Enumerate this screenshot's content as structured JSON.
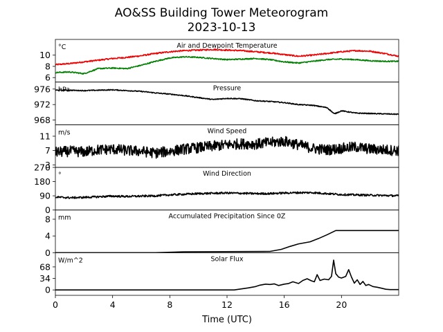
{
  "title": "AO&SS Building Tower Meteorogram",
  "subtitle": "2023-10-13",
  "xlabel": "Time (UTC)",
  "colors": {
    "temperature": "#ee0000",
    "dewpoint": "#008000",
    "line": "#000000"
  },
  "chart_data": {
    "type": "line",
    "x_axis": {
      "label": "Time (UTC)",
      "range": [
        0,
        24
      ],
      "ticks": [
        0,
        4,
        8,
        12,
        16,
        20
      ]
    },
    "panels": [
      {
        "id": "temp",
        "title": "Air and Dewpoint Temperature",
        "unit": "°C",
        "ylim": [
          5.2,
          12.8
        ],
        "yticks": [
          6,
          8,
          10
        ],
        "series": [
          {
            "color": "#ee0000",
            "noise": 0.12,
            "x": [
              0,
              1,
              2,
              3,
              4,
              5,
              6,
              7,
              8,
              9,
              10,
              11,
              12,
              13,
              14,
              15,
              16,
              17,
              18,
              19,
              20,
              21,
              22,
              23,
              24
            ],
            "values": [
              8.3,
              8.5,
              8.8,
              9.1,
              9.4,
              9.6,
              9.9,
              10.3,
              10.6,
              10.8,
              10.9,
              11.0,
              10.9,
              10.8,
              10.6,
              10.4,
              10.1,
              9.8,
              10.0,
              10.3,
              10.6,
              10.8,
              10.7,
              10.3,
              9.8
            ]
          },
          {
            "color": "#008000",
            "noise": 0.1,
            "x": [
              0,
              1,
              2,
              3,
              4,
              5,
              6,
              7,
              8,
              9,
              10,
              11,
              12,
              13,
              14,
              15,
              16,
              17,
              18,
              19,
              20,
              21,
              22,
              23,
              24
            ],
            "values": [
              6.9,
              7.0,
              6.7,
              7.6,
              7.7,
              7.6,
              8.2,
              8.9,
              9.5,
              9.7,
              9.6,
              9.4,
              9.2,
              9.3,
              9.4,
              9.2,
              8.8,
              8.6,
              8.9,
              9.2,
              9.3,
              9.2,
              9.0,
              8.9,
              8.9
            ]
          }
        ]
      },
      {
        "id": "pressure",
        "title": "Pressure",
        "unit": "hPa",
        "ylim": [
          966.8,
          977.8
        ],
        "yticks": [
          968,
          972,
          976
        ],
        "series": [
          {
            "color": "#000000",
            "noise": 0.12,
            "x": [
              0,
              1,
              2,
              3,
              4,
              5,
              6,
              7,
              8,
              9,
              10,
              11,
              12,
              13,
              14,
              15,
              16,
              17,
              18,
              19,
              19.5,
              20,
              21,
              22,
              23,
              24
            ],
            "values": [
              975.7,
              975.7,
              975.6,
              975.7,
              975.8,
              975.6,
              975.4,
              975.0,
              974.7,
              974.3,
              973.8,
              973.3,
              973.6,
              973.5,
              973.0,
              972.8,
              972.5,
              972.0,
              971.8,
              971.2,
              969.6,
              970.4,
              969.8,
              969.7,
              969.6,
              969.5
            ]
          }
        ]
      },
      {
        "id": "wind_speed",
        "title": "Wind Speed",
        "unit": "m/s",
        "ylim": [
          2.3,
          14.2
        ],
        "yticks": [
          3,
          7,
          11
        ],
        "series": [
          {
            "color": "#000000",
            "noise": 1.5,
            "x": [
              0,
              1,
              2,
              3,
              4,
              5,
              6,
              7,
              8,
              9,
              10,
              11,
              12,
              13,
              14,
              15,
              16,
              17,
              18,
              19,
              20,
              21,
              22,
              23,
              24
            ],
            "values": [
              6.5,
              6.8,
              6.6,
              7.2,
              7.4,
              7.0,
              6.8,
              6.3,
              6.8,
              7.4,
              7.8,
              8.2,
              8.6,
              8.9,
              8.8,
              9.2,
              9.6,
              8.6,
              7.6,
              7.2,
              7.6,
              8.0,
              7.4,
              7.2,
              7.0
            ]
          }
        ]
      },
      {
        "id": "wind_dir",
        "title": "Wind Direction",
        "unit": "°",
        "ylim": [
          0,
          270
        ],
        "yticks": [
          0,
          90,
          180,
          270
        ],
        "series": [
          {
            "color": "#000000",
            "noise": 6,
            "x": [
              0,
              1,
              2,
              3,
              4,
              5,
              6,
              7,
              8,
              9,
              10,
              11,
              12,
              13,
              14,
              15,
              16,
              17,
              18,
              19,
              20,
              21,
              22,
              23,
              24
            ],
            "values": [
              82,
              78,
              80,
              84,
              88,
              86,
              88,
              90,
              96,
              100,
              104,
              106,
              108,
              106,
              104,
              104,
              108,
              110,
              110,
              104,
              98,
              96,
              94,
              92,
              90
            ]
          }
        ]
      },
      {
        "id": "precip",
        "title": "Accumulated Precipitation Since 0Z",
        "unit": "mm",
        "ylim": [
          0,
          10.2
        ],
        "yticks": [
          0,
          4,
          8
        ],
        "series": [
          {
            "color": "#000000",
            "noise": 0,
            "x": [
              0,
              7,
              9,
              15,
              15.8,
              16.4,
              17.0,
              17.8,
              18.4,
              19.0,
              19.3,
              19.6,
              20.0,
              24
            ],
            "values": [
              0,
              0,
              0.2,
              0.3,
              0.8,
              1.5,
              2.1,
              2.6,
              3.4,
              4.3,
              4.8,
              5.3,
              5.3,
              5.3
            ]
          }
        ]
      },
      {
        "id": "solar",
        "title": "Solar Flux",
        "unit": "W/m^2",
        "ylim": [
          -16,
          110
        ],
        "yticks": [
          0,
          34,
          68
        ],
        "series": [
          {
            "color": "#000000",
            "noise": 0,
            "x": [
              0,
              12.5,
              13.0,
              13.5,
              14.0,
              14.3,
              14.7,
              15.0,
              15.3,
              15.6,
              16.0,
              16.3,
              16.6,
              17.0,
              17.3,
              17.6,
              17.9,
              18.1,
              18.3,
              18.5,
              18.8,
              19.1,
              19.3,
              19.45,
              19.6,
              19.8,
              20.0,
              20.3,
              20.5,
              20.7,
              20.9,
              21.1,
              21.3,
              21.5,
              21.7,
              21.9,
              22.2,
              22.5,
              22.8,
              23.1,
              23.4,
              24
            ],
            "values": [
              0,
              0,
              3,
              6,
              10,
              14,
              17,
              16,
              18,
              13,
              17,
              19,
              24,
              19,
              28,
              33,
              27,
              24,
              45,
              28,
              32,
              30,
              40,
              88,
              48,
              38,
              35,
              40,
              60,
              38,
              20,
              30,
              16,
              25,
              13,
              16,
              10,
              8,
              5,
              2,
              1,
              1
            ]
          }
        ]
      }
    ]
  }
}
